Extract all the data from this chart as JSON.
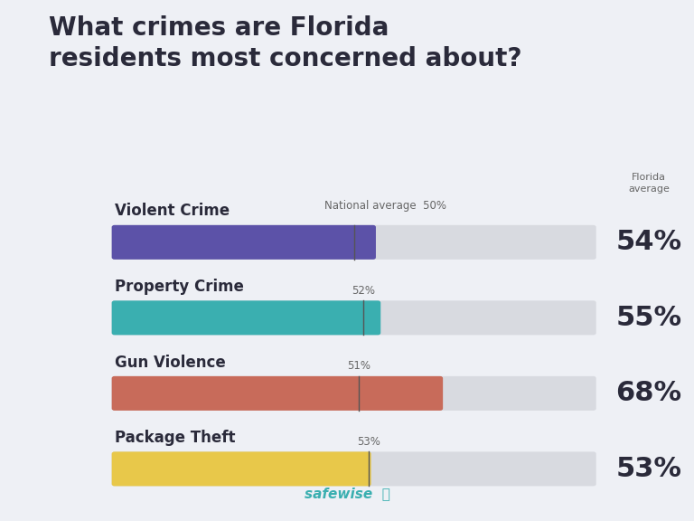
{
  "title": "What crimes are Florida\nresidents most concerned about?",
  "categories": [
    "Violent Crime",
    "Property Crime",
    "Gun Violence",
    "Package Theft"
  ],
  "florida_values": [
    54,
    55,
    68,
    53
  ],
  "national_values": [
    50,
    52,
    51,
    53
  ],
  "bar_colors": [
    "#5c52a8",
    "#3aafb0",
    "#c86b5a",
    "#e8c84a"
  ],
  "bar_max": 100,
  "background_color": "#eef0f5",
  "bar_bg_color": "#d8dae0",
  "title_fontsize": 20,
  "label_fontsize": 12,
  "value_fontsize": 22,
  "national_label_fontsize": 8.5,
  "safewise_color": "#3aafb0",
  "florida_header": "Florida\naverage",
  "text_color": "#2a2a3a"
}
